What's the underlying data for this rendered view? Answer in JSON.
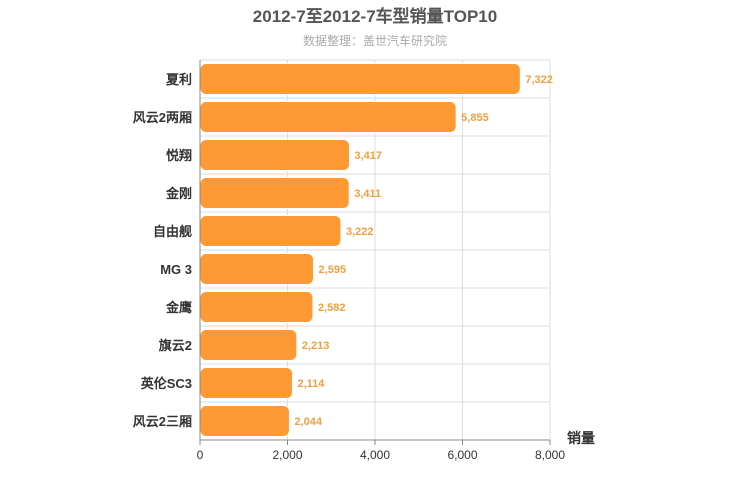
{
  "chart_data": {
    "type": "bar",
    "orientation": "horizontal",
    "title": "2012-7至2012-7车型销量TOP10",
    "subtitle": "数据整理：盖世汽车研究院",
    "xlabel": "销量",
    "ylabel": "",
    "categories": [
      "夏利",
      "风云2两厢",
      "悦翔",
      "金刚",
      "自由舰",
      "MG 3",
      "金鹰",
      "旗云2",
      "英伦SC3",
      "风云2三厢"
    ],
    "values": [
      7322,
      5855,
      3417,
      3411,
      3222,
      2595,
      2582,
      2213,
      2114,
      2044
    ],
    "value_labels": [
      "7,322",
      "5,855",
      "3,417",
      "3,411",
      "3,222",
      "2,595",
      "2,582",
      "2,213",
      "2,114",
      "2,044"
    ],
    "xlim": [
      0,
      8000
    ],
    "ticks": [
      0,
      2000,
      4000,
      6000,
      8000
    ],
    "tick_labels": [
      "0",
      "2,000",
      "4,000",
      "6,000",
      "8,000"
    ],
    "bar_color": "#ff9933",
    "value_label_color": "#f0a040",
    "grid": true,
    "legend": false
  }
}
